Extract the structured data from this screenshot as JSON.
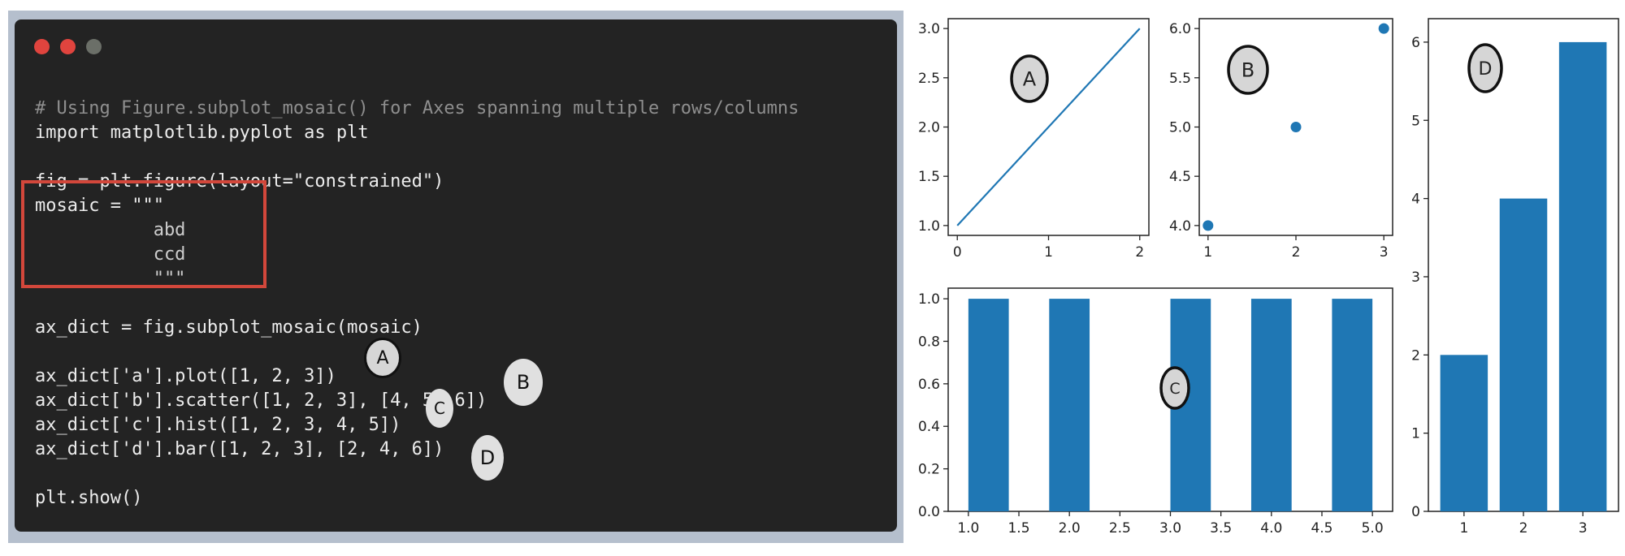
{
  "editor": {
    "window_dots": [
      {
        "name": "close-dot",
        "color": "#e0443e"
      },
      {
        "name": "minimize-dot",
        "color": "#e0443e"
      },
      {
        "name": "maximize-dot",
        "color": "#6b6f68"
      }
    ],
    "code_lines": [
      {
        "text": "# Using Figure.subplot_mosaic() for Axes spanning multiple rows/columns",
        "kind": "comment"
      },
      {
        "text": "import matplotlib.pyplot as plt",
        "kind": "code"
      },
      {
        "text": "",
        "kind": "code"
      },
      {
        "text": "fig = plt.figure(layout=\"constrained\")",
        "kind": "code"
      },
      {
        "text": "mosaic = \"\"\"",
        "kind": "code"
      },
      {
        "text": "           abd",
        "kind": "str"
      },
      {
        "text": "           ccd",
        "kind": "str"
      },
      {
        "text": "           \"\"\"",
        "kind": "str"
      },
      {
        "text": "",
        "kind": "code"
      },
      {
        "text": "ax_dict = fig.subplot_mosaic(mosaic)",
        "kind": "code"
      },
      {
        "text": "",
        "kind": "code"
      },
      {
        "text": "ax_dict['a'].plot([1, 2, 3])",
        "kind": "code"
      },
      {
        "text": "ax_dict['b'].scatter([1, 2, 3], [4, 5, 6])",
        "kind": "code"
      },
      {
        "text": "ax_dict['c'].hist([1, 2, 3, 4, 5])",
        "kind": "code"
      },
      {
        "text": "ax_dict['d'].bar([1, 2, 3], [2, 4, 6])",
        "kind": "code"
      },
      {
        "text": "",
        "kind": "code"
      },
      {
        "text": "plt.show()",
        "kind": "code"
      }
    ],
    "markers": {
      "a": "A",
      "b": "B",
      "c": "C",
      "d": "D"
    }
  },
  "chart_data": [
    {
      "type": "line",
      "panel": "a",
      "badge": "A",
      "x": [
        0,
        1,
        2
      ],
      "y": [
        1,
        2,
        3
      ],
      "xticks": [
        "0",
        "1",
        "2"
      ],
      "yticks": [
        "1.0",
        "1.5",
        "2.0",
        "2.5",
        "3.0"
      ],
      "xlim": [
        -0.1,
        2.1
      ],
      "ylim": [
        0.9,
        3.1
      ],
      "color": "#1f77b4"
    },
    {
      "type": "scatter",
      "panel": "b",
      "badge": "B",
      "x": [
        1,
        2,
        3
      ],
      "y": [
        4,
        5,
        6
      ],
      "xticks": [
        "1",
        "2",
        "3"
      ],
      "yticks": [
        "4.0",
        "4.5",
        "5.0",
        "5.5",
        "6.0"
      ],
      "xlim": [
        0.9,
        3.1
      ],
      "ylim": [
        3.9,
        6.1
      ],
      "color": "#1f77b4"
    },
    {
      "type": "bar",
      "panel": "c",
      "badge": "C",
      "bins": [
        [
          1.0,
          1.4
        ],
        [
          1.8,
          2.2
        ],
        [
          3.0,
          3.4
        ],
        [
          3.8,
          4.2
        ],
        [
          4.6,
          5.0
        ]
      ],
      "values": [
        1.0,
        1.0,
        1.0,
        1.0,
        1.0
      ],
      "xticks": [
        "1.0",
        "1.5",
        "2.0",
        "2.5",
        "3.0",
        "3.5",
        "4.0",
        "4.5",
        "5.0"
      ],
      "yticks": [
        "0.0",
        "0.2",
        "0.4",
        "0.6",
        "0.8",
        "1.0"
      ],
      "xlim": [
        0.8,
        5.2
      ],
      "ylim": [
        0,
        1.05
      ],
      "color": "#1f77b4"
    },
    {
      "type": "bar",
      "panel": "d",
      "badge": "D",
      "categories": [
        "1",
        "2",
        "3"
      ],
      "values": [
        2,
        4,
        6
      ],
      "yticks": [
        "0",
        "1",
        "2",
        "3",
        "4",
        "5",
        "6"
      ],
      "xlim": [
        0.4,
        3.6
      ],
      "ylim": [
        0,
        6.3
      ],
      "color": "#1f77b4"
    }
  ]
}
